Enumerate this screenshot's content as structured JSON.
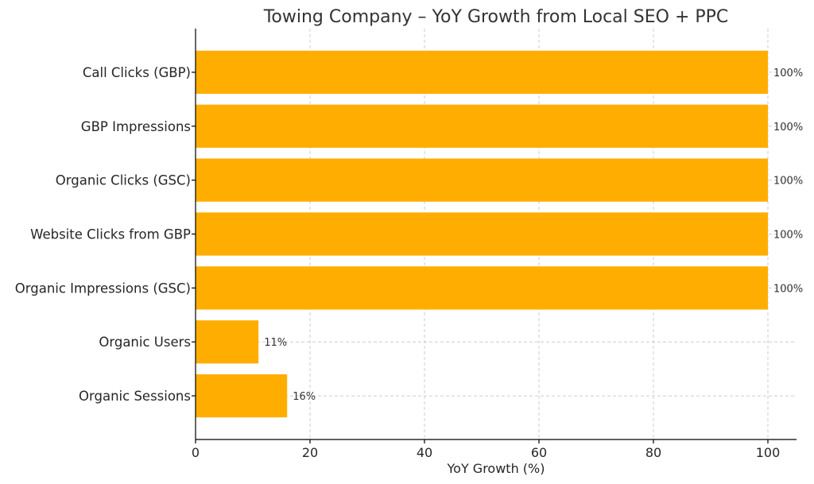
{
  "chart_data": {
    "type": "bar",
    "orientation": "horizontal",
    "title": "Towing Company – YoY Growth from Local SEO + PPC",
    "xlabel": "YoY Growth (%)",
    "ylabel": "",
    "xlim": [
      0,
      105
    ],
    "xticks": [
      0,
      20,
      40,
      60,
      80,
      100
    ],
    "grid": true,
    "bar_color": "#FFAE00",
    "categories": [
      "Call Clicks (GBP)",
      "GBP Impressions",
      "Organic Clicks (GSC)",
      "Website Clicks from GBP",
      "Organic Impressions (GSC)",
      "Organic Users",
      "Organic Sessions"
    ],
    "values": [
      100,
      100,
      100,
      100,
      100,
      11,
      16
    ],
    "value_labels": [
      "100%",
      "100%",
      "100%",
      "100%",
      "100%",
      "11%",
      "16%"
    ]
  }
}
